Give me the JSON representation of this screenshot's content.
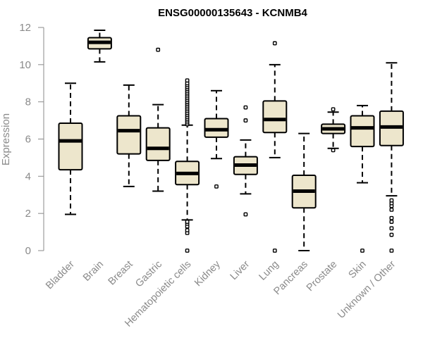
{
  "chart_data": {
    "type": "boxplot",
    "title": "ENSG00000135643 - KCNMB4",
    "xlabel": "",
    "ylabel": "Expression",
    "ylim": [
      0,
      12
    ],
    "yticks": [
      0,
      2,
      4,
      6,
      8,
      10,
      12
    ],
    "box_fill": "#ede6cc",
    "categories": [
      "Bladder",
      "Brain",
      "Breast",
      "Gastric",
      "Hematopoietic cells",
      "Kidney",
      "Liver",
      "Lung",
      "Pancreas",
      "Prostate",
      "Skin",
      "Unknown / Other"
    ],
    "boxes": [
      {
        "name": "Bladder",
        "whisker_low": 1.95,
        "q1": 4.35,
        "median": 5.9,
        "q3": 6.85,
        "whisker_high": 9.0,
        "outliers": []
      },
      {
        "name": "Brain",
        "whisker_low": 10.15,
        "q1": 10.85,
        "median": 11.2,
        "q3": 11.45,
        "whisker_high": 11.85,
        "outliers": []
      },
      {
        "name": "Breast",
        "whisker_low": 3.45,
        "q1": 5.2,
        "median": 6.45,
        "q3": 7.25,
        "whisker_high": 8.9,
        "outliers": []
      },
      {
        "name": "Gastric",
        "whisker_low": 3.2,
        "q1": 4.85,
        "median": 5.5,
        "q3": 6.6,
        "whisker_high": 7.85,
        "outliers": [
          10.8
        ]
      },
      {
        "name": "Hematopoietic cells",
        "whisker_low": 1.65,
        "q1": 3.55,
        "median": 4.15,
        "q3": 4.8,
        "whisker_high": 6.75,
        "outliers": [
          0.0,
          0.95,
          1.1,
          1.3,
          1.45,
          1.55,
          6.8,
          6.9,
          7.0,
          7.1,
          7.2,
          7.3,
          7.4,
          7.5,
          7.6,
          7.7,
          7.8,
          7.9,
          8.0,
          8.1,
          8.2,
          8.3,
          8.4,
          8.5,
          8.6,
          8.7,
          8.8,
          8.9,
          9.0,
          9.15
        ]
      },
      {
        "name": "Kidney",
        "whisker_low": 4.95,
        "q1": 6.1,
        "median": 6.5,
        "q3": 7.1,
        "whisker_high": 8.6,
        "outliers": [
          3.45
        ]
      },
      {
        "name": "Liver",
        "whisker_low": 3.05,
        "q1": 4.1,
        "median": 4.6,
        "q3": 5.05,
        "whisker_high": 5.95,
        "outliers": [
          1.95,
          7.0,
          7.7
        ]
      },
      {
        "name": "Lung",
        "whisker_low": 5.0,
        "q1": 6.35,
        "median": 7.05,
        "q3": 8.05,
        "whisker_high": 10.0,
        "outliers": [
          0.0,
          11.15
        ]
      },
      {
        "name": "Pancreas",
        "whisker_low": 0.0,
        "q1": 2.3,
        "median": 3.2,
        "q3": 4.05,
        "whisker_high": 6.3,
        "outliers": []
      },
      {
        "name": "Prostate",
        "whisker_low": 5.5,
        "q1": 6.3,
        "median": 6.55,
        "q3": 6.8,
        "whisker_high": 7.45,
        "outliers": [
          5.4,
          7.6
        ]
      },
      {
        "name": "Skin",
        "whisker_low": 3.65,
        "q1": 5.6,
        "median": 6.6,
        "q3": 7.25,
        "whisker_high": 7.8,
        "outliers": [
          0.0
        ]
      },
      {
        "name": "Unknown / Other",
        "whisker_low": 2.95,
        "q1": 5.65,
        "median": 6.65,
        "q3": 7.5,
        "whisker_high": 10.1,
        "outliers": [
          0.0,
          0.85,
          1.2,
          1.55,
          1.75,
          2.2,
          2.4,
          2.55,
          2.7
        ]
      }
    ]
  }
}
